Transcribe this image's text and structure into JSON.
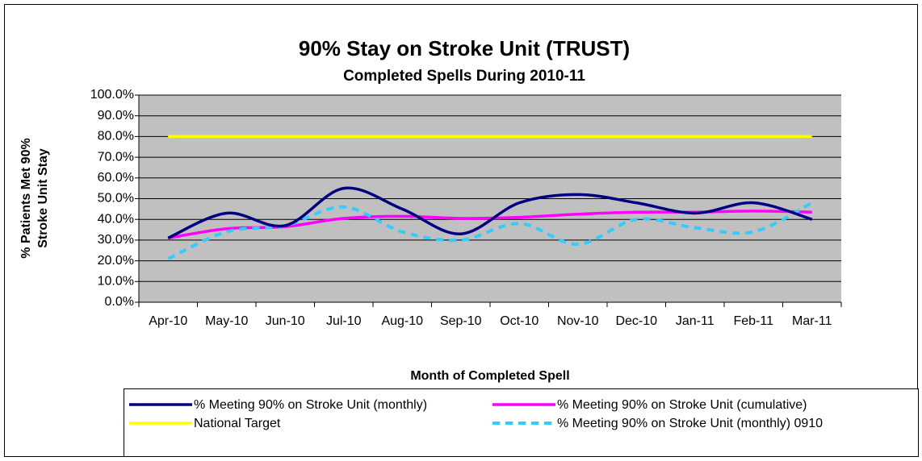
{
  "chart_data": {
    "type": "line",
    "title": "90% Stay on Stroke Unit (TRUST)",
    "subtitle": "Completed Spells During 2010-11",
    "xlabel": "Month of Completed Spell",
    "ylabel": [
      "% Patients Met 90%",
      "Stroke Unit Stay"
    ],
    "categories": [
      "Apr-10",
      "May-10",
      "Jun-10",
      "Jul-10",
      "Aug-10",
      "Sep-10",
      "Oct-10",
      "Nov-10",
      "Dec-10",
      "Jan-11",
      "Feb-11",
      "Mar-11"
    ],
    "series": [
      {
        "name": "% Meeting 90% on Stroke Unit (monthly)",
        "color": "#000080",
        "dashed": false,
        "values": [
          31,
          43,
          37,
          55,
          45,
          33,
          48,
          52,
          48,
          43,
          48,
          40
        ]
      },
      {
        "name": "% Meeting 90% on Stroke Unit (cumulative)",
        "color": "#ff00ff",
        "dashed": false,
        "values": [
          31,
          35.5,
          36.5,
          40.5,
          41.5,
          40.5,
          41,
          42.5,
          43.5,
          43.5,
          44,
          43.5
        ]
      },
      {
        "name": "National Target",
        "color": "#ffff00",
        "dashed": false,
        "values": [
          80,
          80,
          80,
          80,
          80,
          80,
          80,
          80,
          80,
          80,
          80,
          80
        ]
      },
      {
        "name": "% Meeting 90% on Stroke Unit (monthly) 0910",
        "color": "#33ccff",
        "dashed": true,
        "values": [
          21,
          34,
          37,
          46,
          34,
          30,
          38,
          28,
          40,
          36,
          34,
          48
        ]
      }
    ],
    "ylim": [
      0,
      100
    ],
    "yticks": [
      {
        "value": 0,
        "label": "0.0%"
      },
      {
        "value": 10,
        "label": "10.0%"
      },
      {
        "value": 20,
        "label": "20.0%"
      },
      {
        "value": 30,
        "label": "30.0%"
      },
      {
        "value": 40,
        "label": "40.0%"
      },
      {
        "value": 50,
        "label": "50.0%"
      },
      {
        "value": 60,
        "label": "60.0%"
      },
      {
        "value": 70,
        "label": "70.0%"
      },
      {
        "value": 80,
        "label": "80.0%"
      },
      {
        "value": 90,
        "label": "90.0%"
      },
      {
        "value": 100,
        "label": "100.0%"
      }
    ],
    "grid": true,
    "smooth": true,
    "plot_background": "#c0c0c0",
    "legend": "bottom"
  }
}
